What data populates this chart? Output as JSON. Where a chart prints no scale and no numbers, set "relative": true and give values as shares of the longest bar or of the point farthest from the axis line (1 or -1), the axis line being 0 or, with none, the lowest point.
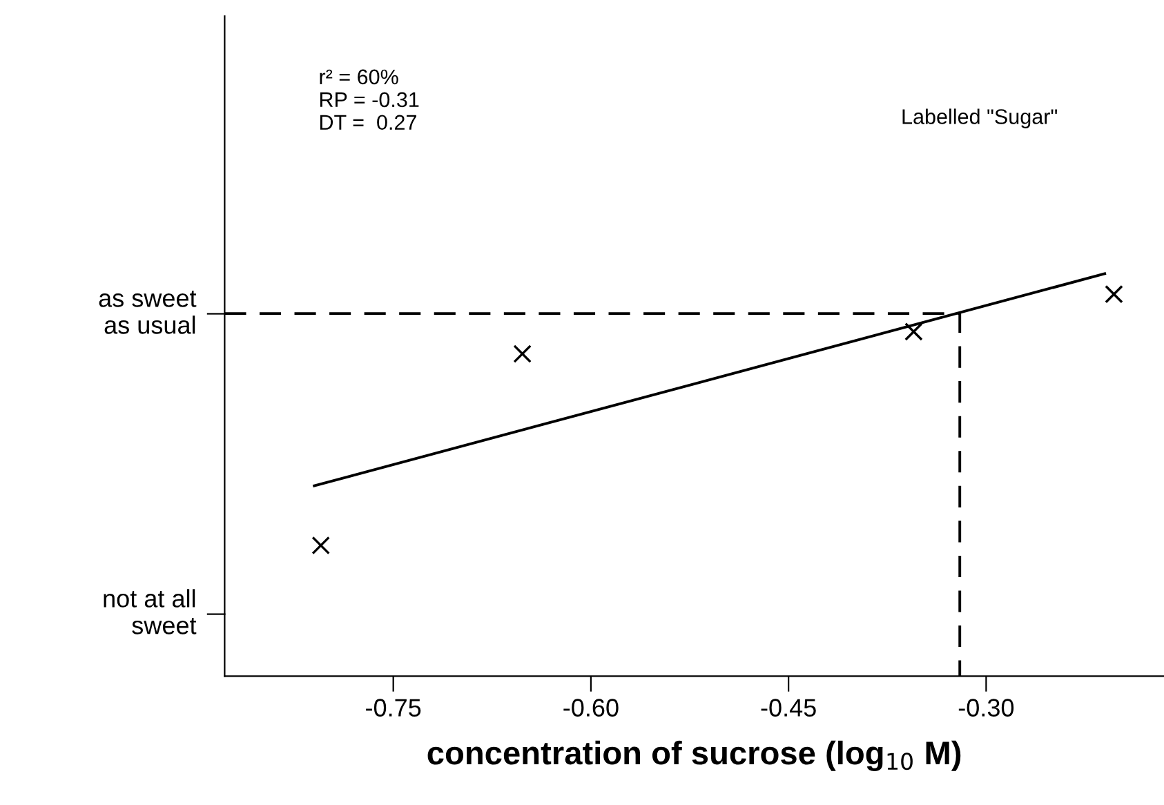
{
  "chart_data": {
    "type": "scatter",
    "relative": true,
    "xlabel": "concentration of sucrose (log$_{10}$ M)",
    "xlim": [
      -0.878,
      -0.165
    ],
    "xticks": [
      -0.75,
      {
        "value": -0.6,
        "label": "-0.60"
      },
      -0.45,
      {
        "value": -0.3,
        "label": "-0.30"
      }
    ],
    "marker": "cross",
    "series": [
      {
        "color": "#000000",
        "x": [
          -0.805,
          -0.652,
          -0.355,
          -0.203
        ],
        "values": [
          0.325,
          0.801,
          0.856,
          0.949
        ]
      },
      {
        "type": "line",
        "marker": "none",
        "color": "#000000",
        "line_style": "solid",
        "x": [
          -0.81,
          -0.21
        ],
        "values": [
          0.473,
          1
        ]
      },
      {
        "type": "line",
        "marker": "none",
        "color": "#000000",
        "line_style": "dashed",
        "x": [
          -0.878,
          -0.32,
          -0.32
        ],
        "values": [
          0.901,
          0.901,
          0
        ]
      }
    ],
    "annotations": [
      "as sweet\nas usual",
      "not at all\nsweet",
      "r² = 60%\nRP = -0.31\nDT =  0.27",
      "Labelled \"Sugar\""
    ]
  }
}
